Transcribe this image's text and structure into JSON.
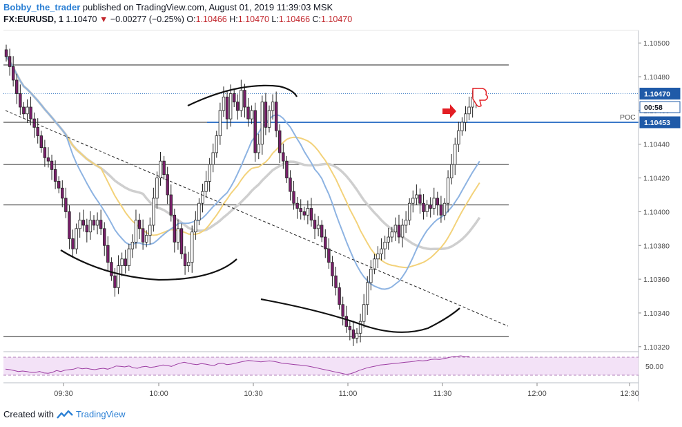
{
  "header": {
    "author": "Bobby_the_trader",
    "published": "published on TradingView.com, August 01, 2019 11:39:03 MSK",
    "symbol": "FX:EURUSD, 1",
    "last": "1.10470",
    "change": "−0.00277 (−0.25%)",
    "o_label": "O:",
    "o_value": "1.10466",
    "h_label": "H:",
    "h_value": "1.10470",
    "l_label": "L:",
    "l_value": "1.10466",
    "c_label": "C:",
    "c_value": "1.10470"
  },
  "footer": {
    "created_with": "Created with",
    "brand": "TradingView"
  },
  "colors": {
    "candle_up": "#ffffff",
    "candle_down": "#7a1f6b",
    "wick": "#222222",
    "ma_gray": "#cfcfcf",
    "ma_yellow": "#f3d27a",
    "ma_blue": "#8db3e2",
    "poc_line": "#3a78c8",
    "rsi_line": "#9c3ca2",
    "rsi_band": "#f3e2f7",
    "marker_red": "#e31e24",
    "price_tag": "#1f5aa8"
  },
  "chart_data": {
    "type": "candlestick",
    "y_ticks": [
      "1.10500",
      "1.10480",
      "1.10460",
      "1.10440",
      "1.10420",
      "1.10400",
      "1.10380",
      "1.10360",
      "1.10340",
      "1.10320"
    ],
    "x_ticks": [
      "09:30",
      "10:00",
      "10:30",
      "11:00",
      "11:30",
      "12:00",
      "12:30"
    ],
    "ylim": [
      1.10315,
      1.10505
    ],
    "price_tags": [
      {
        "text": "1.10470",
        "value": 1.1047
      },
      {
        "text": "00:58",
        "value": 1.10462
      },
      {
        "text": "1.10453",
        "value": 1.10453
      }
    ],
    "poc_label": "POC",
    "rsi_tick": "50.00",
    "horizontal_levels": [
      1.10487,
      1.10453,
      1.10428,
      1.10404,
      1.10326
    ],
    "closes": [
      1.10492,
      1.10486,
      1.10478,
      1.1047,
      1.10462,
      1.10458,
      1.10462,
      1.10455,
      1.1045,
      1.10445,
      1.10438,
      1.10432,
      1.1043,
      1.10425,
      1.10418,
      1.10414,
      1.10408,
      1.104,
      1.10384,
      1.10378,
      1.1039,
      1.10395,
      1.10392,
      1.10388,
      1.10395,
      1.10392,
      1.10395,
      1.1039,
      1.1038,
      1.1037,
      1.10362,
      1.10355,
      1.10368,
      1.10372,
      1.10368,
      1.10378,
      1.10382,
      1.10395,
      1.1039,
      1.10382,
      1.10386,
      1.10392,
      1.10408,
      1.1042,
      1.1043,
      1.10422,
      1.1041,
      1.10398,
      1.10382,
      1.1039,
      1.10375,
      1.10368,
      1.1037,
      1.10388,
      1.10395,
      1.10405,
      1.10412,
      1.10418,
      1.10428,
      1.10435,
      1.10445,
      1.1046,
      1.10468,
      1.10455,
      1.1047,
      1.10465,
      1.1046,
      1.10472,
      1.10462,
      1.10455,
      1.1046,
      1.10435,
      1.1044,
      1.10465,
      1.1045,
      1.1046,
      1.10465,
      1.10448,
      1.10435,
      1.1043,
      1.1042,
      1.10412,
      1.10405,
      1.10402,
      1.104,
      1.10398,
      1.10402,
      1.10395,
      1.1039,
      1.10392,
      1.10385,
      1.10378,
      1.1037,
      1.10362,
      1.10355,
      1.10345,
      1.10338,
      1.10332,
      1.1033,
      1.10325,
      1.10328,
      1.10335,
      1.10345,
      1.10358,
      1.10366,
      1.10372,
      1.10375,
      1.10378,
      1.10382,
      1.10385,
      1.10388,
      1.10392,
      1.10385,
      1.10392,
      1.10395,
      1.10405,
      1.10408,
      1.1041,
      1.10405,
      1.104,
      1.10404,
      1.10402,
      1.10408,
      1.10404,
      1.10398,
      1.10405,
      1.1042,
      1.10428,
      1.1044,
      1.10448,
      1.10453,
      1.10458,
      1.10462,
      1.10468,
      1.10466,
      1.1047
    ],
    "rsi_values": [
      45,
      44,
      42,
      40,
      41,
      40,
      38,
      38,
      40,
      37,
      36,
      38,
      42,
      40,
      43,
      44,
      45,
      48,
      46,
      47,
      45,
      44,
      46,
      47,
      45,
      48,
      52,
      51,
      50,
      52,
      48,
      47,
      50,
      51,
      49,
      50,
      52,
      54,
      53,
      51,
      55,
      58,
      60,
      58,
      56,
      55,
      57,
      56,
      54,
      53,
      57,
      58,
      55,
      56,
      58,
      60,
      62,
      64,
      63,
      62,
      61,
      62,
      63,
      62,
      60,
      58,
      57,
      56,
      55,
      54,
      53,
      52,
      50,
      48,
      46,
      44,
      42,
      40,
      38,
      36,
      34,
      35,
      38,
      42,
      45,
      48,
      50,
      52,
      54,
      55,
      56,
      57,
      58,
      59,
      60,
      61,
      62,
      64,
      63,
      64,
      66,
      67,
      66,
      68,
      70,
      72,
      73,
      74,
      72,
      73
    ]
  }
}
